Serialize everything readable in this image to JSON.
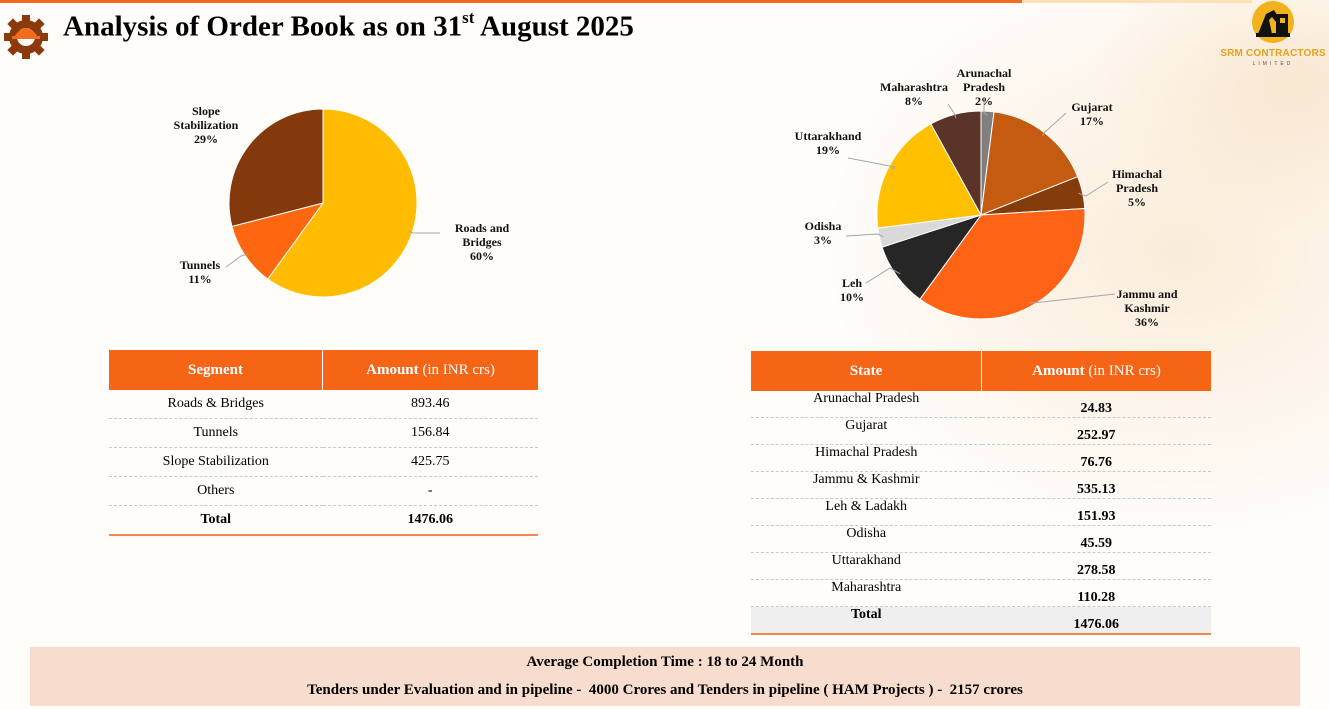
{
  "header": {
    "title_main": "Analysis of Order Book as on 31",
    "title_sup": "st",
    "title_tail": " August 2025"
  },
  "logo": {
    "name": "SRM CONTRACTORS",
    "sub": "LIMITED",
    "icon": "excavator-icon",
    "color": "#e4a21d"
  },
  "colors": {
    "accent": "#f66416",
    "footer_bg": "#f8dccd"
  },
  "chart_data": [
    {
      "type": "pie",
      "categories": [
        "Roads and Bridges",
        "Tunnels",
        "Slope Stabilization"
      ],
      "values": [
        60,
        11,
        29
      ],
      "labels": [
        [
          "Roads and",
          "Bridges",
          "60%"
        ],
        [
          "Tunnels",
          "11%"
        ],
        [
          "Slope",
          "Stabilization",
          "29%"
        ]
      ],
      "colors": [
        "#ffbc00",
        "#fc670f",
        "#83390b"
      ]
    },
    {
      "type": "pie",
      "categories": [
        "Arunachal Pradesh",
        "Gujarat",
        "Himachal Pradesh",
        "Jammu and Kashmir",
        "Leh",
        "Odisha",
        "Uttarakhand",
        "Maharashtra"
      ],
      "values": [
        2,
        17,
        5,
        36,
        10,
        3,
        19,
        8
      ],
      "labels": [
        [
          "Arunachal",
          "Pradesh",
          "2%"
        ],
        [
          "Gujarat",
          "17%"
        ],
        [
          "Himachal",
          "Pradesh",
          "5%"
        ],
        [
          "Jammu and",
          "Kashmir",
          "36%"
        ],
        [
          "Leh",
          "10%"
        ],
        [
          "Odisha",
          "3%"
        ],
        [
          "Uttarakhand",
          "19%"
        ],
        [
          "Maharashtra",
          "8%"
        ]
      ],
      "colors": [
        "#7f7f7f",
        "#c55a11",
        "#843c0c",
        "#ff6315",
        "#262626",
        "#d9d9d9",
        "#ffc000",
        "#5a3329"
      ]
    }
  ],
  "segment_table": {
    "headers": {
      "col1": "Segment",
      "col2": "Amount",
      "col2_unit": " (in INR crs)"
    },
    "rows": [
      [
        "Roads & Bridges",
        "893.46"
      ],
      [
        "Tunnels",
        "156.84"
      ],
      [
        "Slope Stabilization",
        "425.75"
      ],
      [
        "Others",
        "-"
      ]
    ],
    "total": [
      "Total",
      "1476.06"
    ]
  },
  "state_table": {
    "headers": {
      "col1": "State",
      "col2": "Amount",
      "col2_unit": " (in INR crs)"
    },
    "rows": [
      [
        "Arunachal Pradesh",
        "24.83"
      ],
      [
        "Gujarat",
        "252.97"
      ],
      [
        "Himachal Pradesh",
        "76.76"
      ],
      [
        "Jammu & Kashmir",
        "535.13"
      ],
      [
        "Leh & Ladakh",
        "151.93"
      ],
      [
        "Odisha",
        "45.59"
      ],
      [
        "Uttarakhand",
        "278.58"
      ],
      [
        "Maharashtra",
        "110.28"
      ]
    ],
    "total": [
      "Total",
      "1476.06"
    ]
  },
  "footer": {
    "line1": "Average Completion Time : 18 to 24 Month",
    "line2": "Tenders under Evaluation and in pipeline -  4000 Crores and Tenders in pipeline ( HAM Projects ) -  2157 crores"
  }
}
